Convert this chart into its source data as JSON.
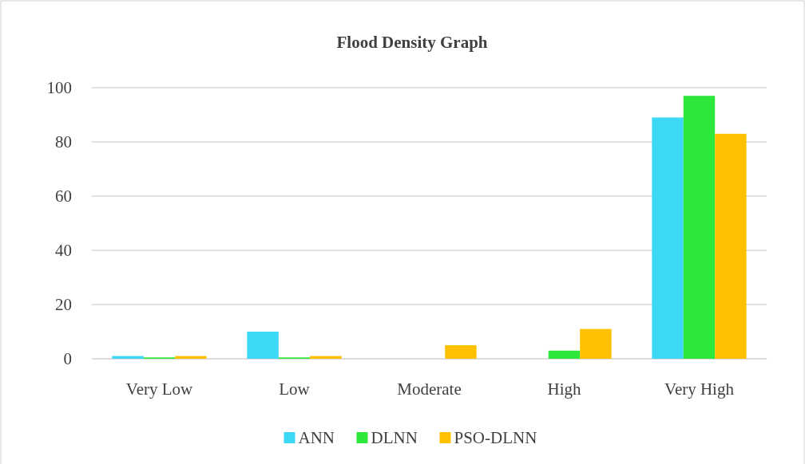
{
  "chart_data": {
    "type": "bar",
    "title": "Flood Density Graph",
    "categories": [
      "Very Low",
      "Low",
      "Moderate",
      "High",
      "Very High"
    ],
    "series": [
      {
        "name": "ANN",
        "color": "#3dd8f5",
        "values": [
          1,
          10,
          0,
          0,
          89
        ]
      },
      {
        "name": "DLNN",
        "color": "#2de83a",
        "values": [
          0.5,
          0.5,
          0,
          3,
          97
        ]
      },
      {
        "name": "PSO-DLNN",
        "color": "#ffc000",
        "values": [
          1,
          1,
          5,
          11,
          83
        ]
      }
    ],
    "ylim": [
      0,
      100
    ],
    "yticks": [
      0,
      20,
      40,
      60,
      80,
      100
    ],
    "grid": "y",
    "legend": "bottom"
  }
}
